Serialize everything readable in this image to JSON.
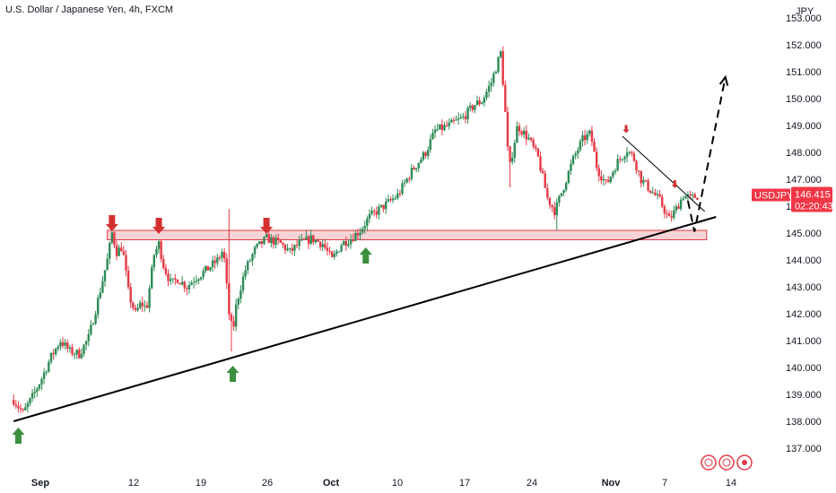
{
  "header": {
    "title": "U.S. Dollar / Japanese Yen, 4h, FXCM"
  },
  "colors": {
    "up": "#26a69a",
    "up_candle": "#2e8b57",
    "down": "#e53946",
    "zone_fill": "#f7c5c9",
    "zone_border": "#e53946",
    "arrow_up": "#3b8f3e",
    "arrow_down": "#d32f2f",
    "trendline": "#000000",
    "price_tag": "#f23645"
  },
  "price_tag": {
    "symbol": "USDJPY",
    "price": "146.415",
    "countdown": "02:20:43"
  },
  "chart_data": {
    "type": "candlestick",
    "title": "U.S. Dollar / Japanese Yen, 4h, FXCM",
    "y_axis_unit": "JPY",
    "ylim": [
      136.7,
      153.0
    ],
    "y_ticks": [
      "137.000",
      "138.000",
      "139.000",
      "140.000",
      "141.000",
      "142.000",
      "143.000",
      "144.000",
      "145.000",
      "146.000",
      "147.000",
      "148.000",
      "149.000",
      "150.000",
      "151.000",
      "152.000",
      "153.000"
    ],
    "x_ticks": [
      {
        "label": "Sep",
        "bold": true
      },
      {
        "label": "12",
        "bold": false
      },
      {
        "label": "19",
        "bold": false
      },
      {
        "label": "26",
        "bold": false
      },
      {
        "label": "Oct",
        "bold": true
      },
      {
        "label": "10",
        "bold": false
      },
      {
        "label": "17",
        "bold": false
      },
      {
        "label": "24",
        "bold": false
      },
      {
        "label": "Nov",
        "bold": true
      },
      {
        "label": "7",
        "bold": false
      },
      {
        "label": "14",
        "bold": false
      }
    ],
    "price_path": [
      [
        0.0,
        138.8
      ],
      [
        1.0,
        138.3
      ],
      [
        2.0,
        138.9
      ],
      [
        3.0,
        139.6
      ],
      [
        4.0,
        140.4
      ],
      [
        5.0,
        141.0
      ],
      [
        6.0,
        140.6
      ],
      [
        7.0,
        140.5
      ],
      [
        8.0,
        141.1
      ],
      [
        9.0,
        142.5
      ],
      [
        10.0,
        144.0
      ],
      [
        10.5,
        145.0
      ],
      [
        11.0,
        144.3
      ],
      [
        11.6,
        144.5
      ],
      [
        12.3,
        142.7
      ],
      [
        13.0,
        142.0
      ],
      [
        13.6,
        142.4
      ],
      [
        14.2,
        142.2
      ],
      [
        15.0,
        144.2
      ],
      [
        15.5,
        144.6
      ],
      [
        16.0,
        143.8
      ],
      [
        16.8,
        143.1
      ],
      [
        17.5,
        143.3
      ],
      [
        18.5,
        143.0
      ],
      [
        19.3,
        143.3
      ],
      [
        20.5,
        143.6
      ],
      [
        21.8,
        144.0
      ],
      [
        22.4,
        144.4
      ],
      [
        23.0,
        142.0
      ],
      [
        23.4,
        141.3
      ],
      [
        23.8,
        142.4
      ],
      [
        24.7,
        143.6
      ],
      [
        25.8,
        144.4
      ],
      [
        27.0,
        144.8
      ],
      [
        28.5,
        144.6
      ],
      [
        29.5,
        144.3
      ],
      [
        30.5,
        144.6
      ],
      [
        31.8,
        144.8
      ],
      [
        33.0,
        144.6
      ],
      [
        34.0,
        144.0
      ],
      [
        35.0,
        144.6
      ],
      [
        36.0,
        144.8
      ],
      [
        37.0,
        145.1
      ],
      [
        38.0,
        145.6
      ],
      [
        39.5,
        146.0
      ],
      [
        41.0,
        146.4
      ],
      [
        42.5,
        147.3
      ],
      [
        44.0,
        148.0
      ],
      [
        45.0,
        148.8
      ],
      [
        46.5,
        149.0
      ],
      [
        48.0,
        149.3
      ],
      [
        49.3,
        149.8
      ],
      [
        50.0,
        149.9
      ],
      [
        51.0,
        150.6
      ],
      [
        52.0,
        151.7
      ],
      [
        52.4,
        150.0
      ],
      [
        52.9,
        147.3
      ],
      [
        53.8,
        149.0
      ],
      [
        55.0,
        148.5
      ],
      [
        56.0,
        147.8
      ],
      [
        57.0,
        146.3
      ],
      [
        57.8,
        145.8
      ],
      [
        58.8,
        146.8
      ],
      [
        59.8,
        147.8
      ],
      [
        60.8,
        148.5
      ],
      [
        61.6,
        148.7
      ],
      [
        62.3,
        147.4
      ],
      [
        63.3,
        146.8
      ],
      [
        64.4,
        147.6
      ],
      [
        65.5,
        148.1
      ],
      [
        66.2,
        147.8
      ],
      [
        67.0,
        147.0
      ],
      [
        68.0,
        146.6
      ],
      [
        69.0,
        146.2
      ],
      [
        70.0,
        145.5
      ],
      [
        70.6,
        145.8
      ],
      [
        71.5,
        146.4
      ],
      [
        72.3,
        146.3
      ],
      [
        73.2,
        146.4
      ]
    ],
    "support_zone": [
      144.75,
      145.1
    ],
    "support_zone_x": [
      10.0,
      74.0
    ],
    "rising_trendline": [
      [
        0.0,
        138.0
      ],
      [
        75.0,
        145.6
      ]
    ],
    "falling_trendline": [
      [
        65.0,
        148.6
      ],
      [
        73.8,
        145.8
      ]
    ],
    "projection_path": [
      [
        72.0,
        146.2
      ],
      [
        72.7,
        145.05
      ],
      [
        76.0,
        150.8
      ]
    ],
    "resistance_arrows": [
      {
        "x": 10.5,
        "price": 145.0
      },
      {
        "x": 15.5,
        "price": 144.9
      },
      {
        "x": 27.0,
        "price": 144.9
      },
      {
        "x": 65.4,
        "price": 148.65
      },
      {
        "x": 70.6,
        "price": 146.6
      }
    ],
    "support_arrows": [
      {
        "x": 0.5,
        "price": 137.9
      },
      {
        "x": 23.4,
        "price": 140.2
      },
      {
        "x": 37.6,
        "price": 144.6
      }
    ],
    "grid": false,
    "legend": "none"
  }
}
